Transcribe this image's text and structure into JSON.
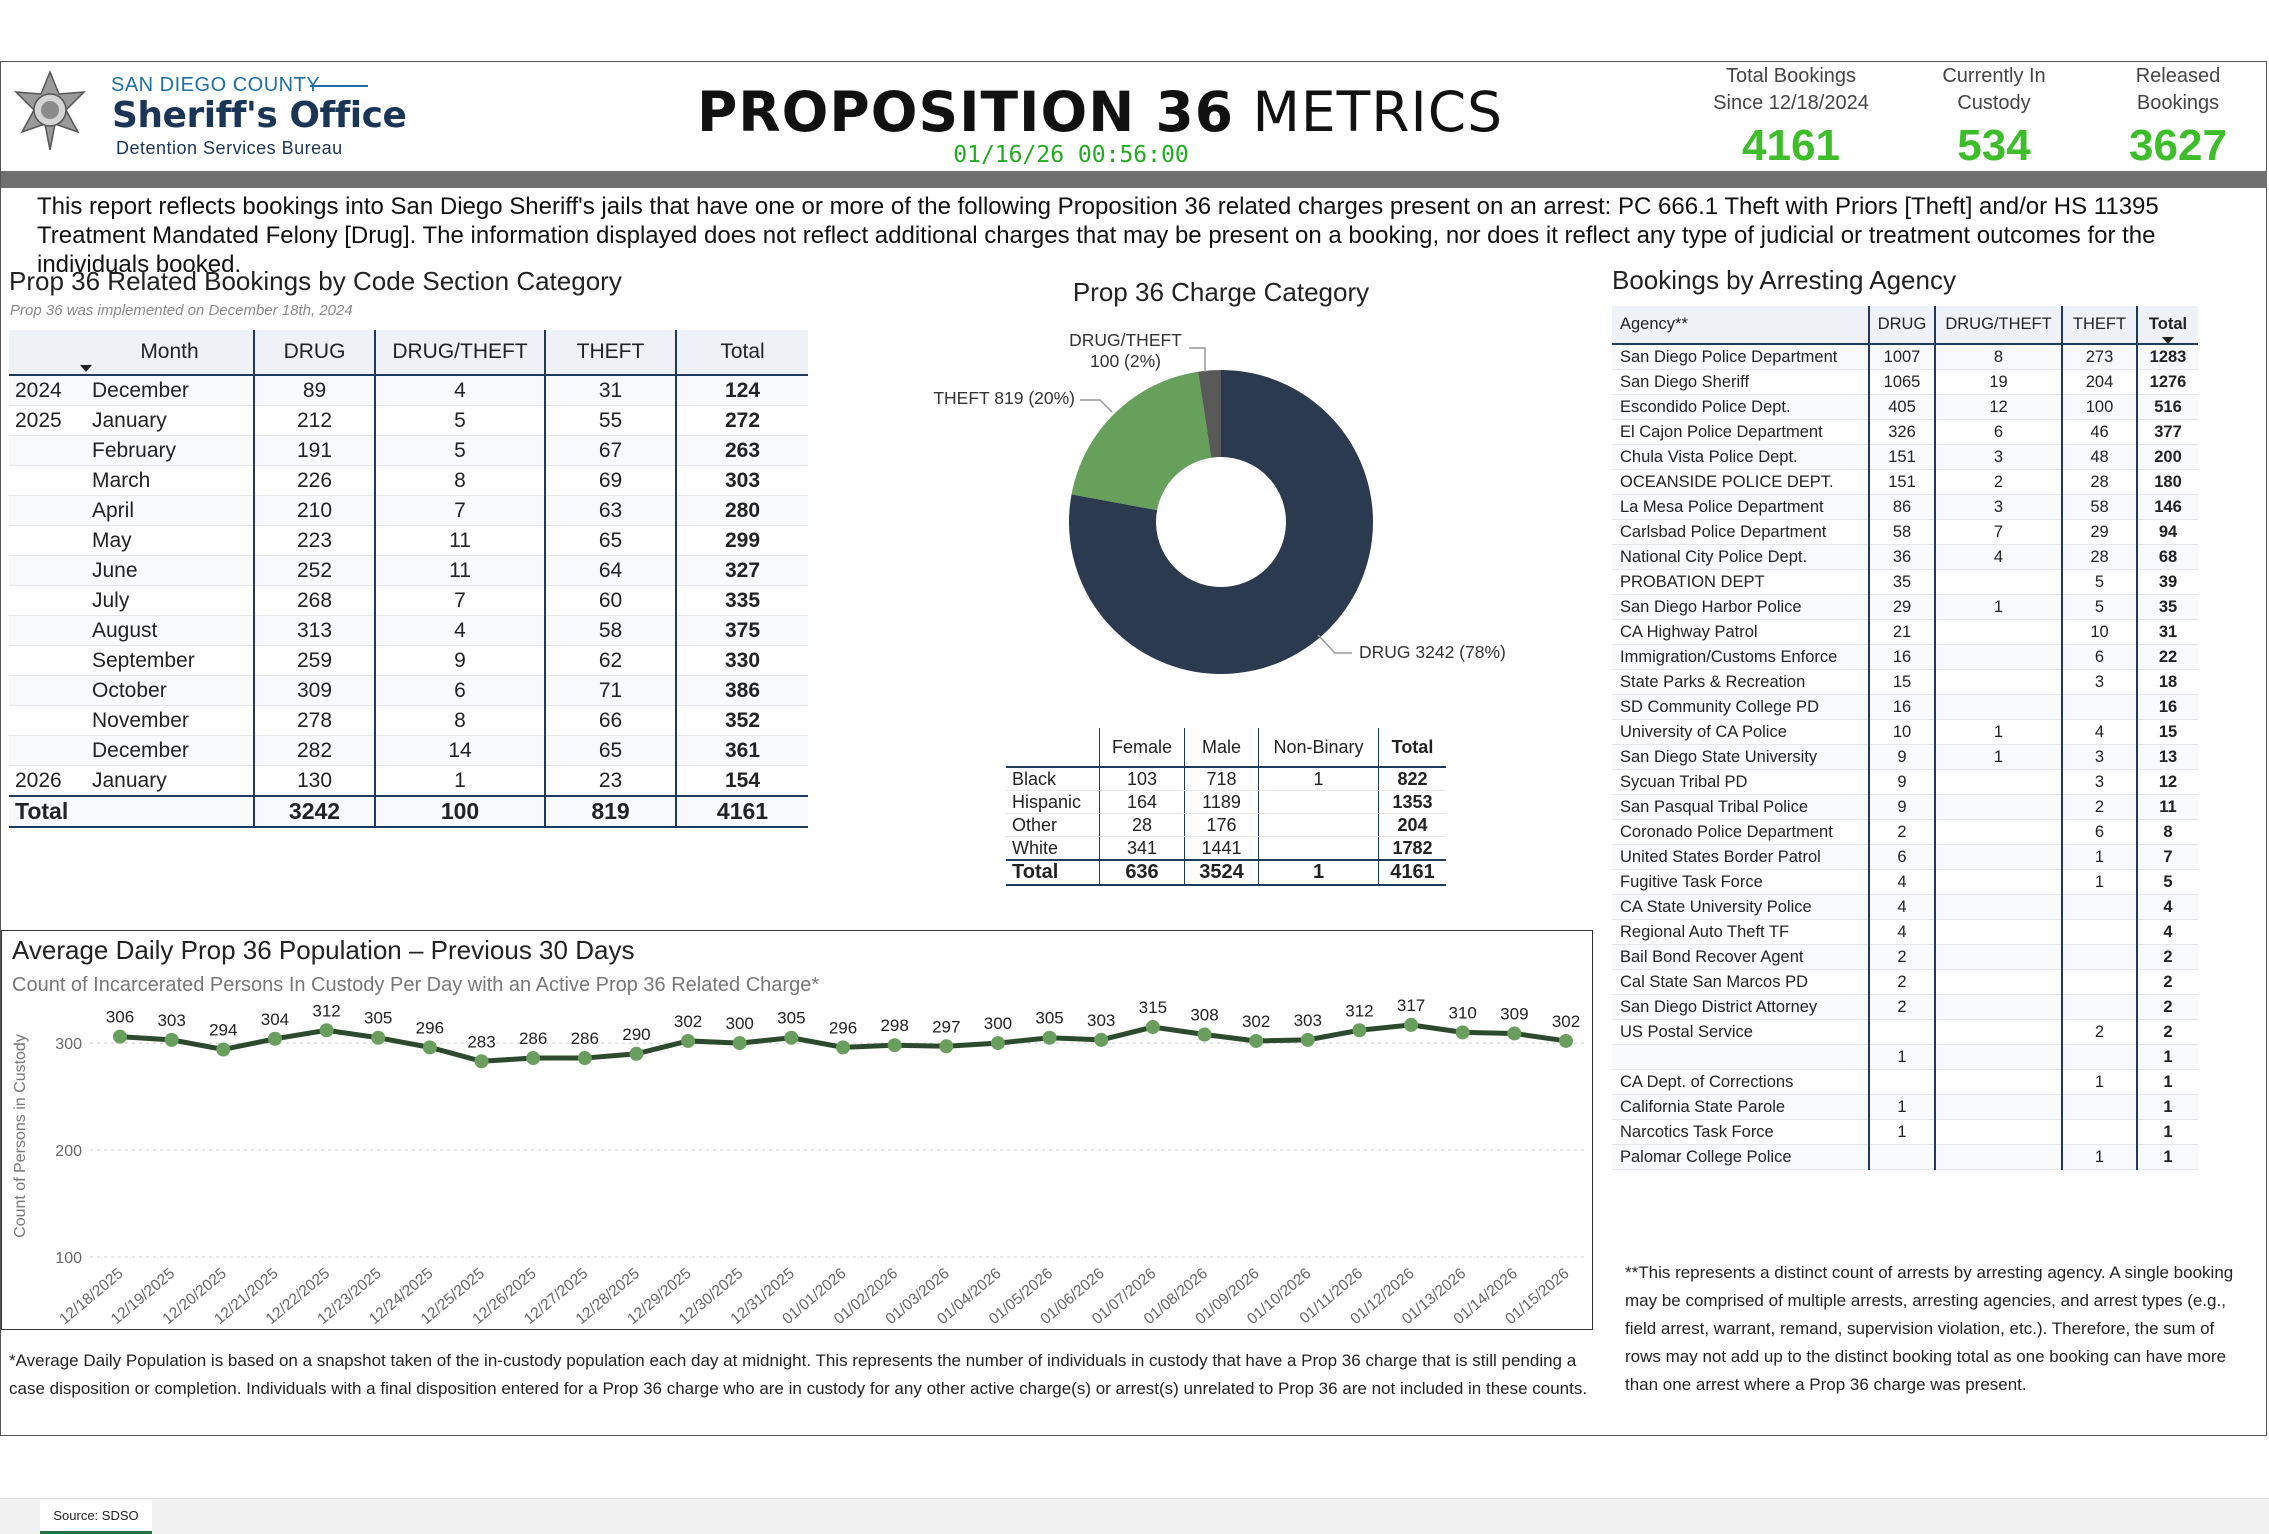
{
  "header": {
    "org_county": "SAN DIEGO COUNTY",
    "org_name": "Sheriff's Office",
    "org_unit": "Detention Services Bureau",
    "title_bold": "PROPOSITION 36",
    "title_light": "METRICS",
    "timestamp": "01/16/26 00:56:00",
    "kpis": [
      {
        "label": "Total Bookings Since 12/18/2024",
        "value": 4161
      },
      {
        "label": "Currently In Custody",
        "value": 534
      },
      {
        "label": "Released Bookings",
        "value": 3627
      }
    ]
  },
  "intro": "This report reflects bookings into San Diego Sheriff's jails that have one or more of the following Proposition 36 related charges present on an arrest: PC 666.1 Theft with Priors [Theft] and/or HS 11395 Treatment Mandated Felony [Drug]. The information displayed does not reflect additional charges that may be present on a booking, nor does it reflect any type of judicial or treatment outcomes for the individuals booked.",
  "monthly_table": {
    "title": "Prop 36 Related Bookings by Code Section Category",
    "subtitle": "Prop 36 was implemented on December 18th, 2024",
    "columns": [
      "Month",
      "DRUG",
      "DRUG/THEFT",
      "THEFT",
      "Total"
    ],
    "rows": [
      {
        "year": "2024",
        "month": "December",
        "values": [
          89,
          4,
          31,
          124
        ]
      },
      {
        "year": "2025",
        "month": "January",
        "values": [
          212,
          5,
          55,
          272
        ]
      },
      {
        "year": null,
        "month": "February",
        "values": [
          191,
          5,
          67,
          263
        ]
      },
      {
        "year": null,
        "month": "March",
        "values": [
          226,
          8,
          69,
          303
        ]
      },
      {
        "year": null,
        "month": "April",
        "values": [
          210,
          7,
          63,
          280
        ]
      },
      {
        "year": null,
        "month": "May",
        "values": [
          223,
          11,
          65,
          299
        ]
      },
      {
        "year": null,
        "month": "June",
        "values": [
          252,
          11,
          64,
          327
        ]
      },
      {
        "year": null,
        "month": "July",
        "values": [
          268,
          7,
          60,
          335
        ]
      },
      {
        "year": null,
        "month": "August",
        "values": [
          313,
          4,
          58,
          375
        ]
      },
      {
        "year": null,
        "month": "September",
        "values": [
          259,
          9,
          62,
          330
        ]
      },
      {
        "year": null,
        "month": "October",
        "values": [
          309,
          6,
          71,
          386
        ]
      },
      {
        "year": null,
        "month": "November",
        "values": [
          278,
          8,
          66,
          352
        ]
      },
      {
        "year": null,
        "month": "December",
        "values": [
          282,
          14,
          65,
          361
        ]
      },
      {
        "year": "2026",
        "month": "January",
        "values": [
          130,
          1,
          23,
          154
        ]
      }
    ],
    "total": {
      "label": "Total",
      "values": [
        3242,
        100,
        819,
        4161
      ]
    }
  },
  "chart_data": [
    {
      "type": "donut",
      "title": "Prop 36 Charge Category",
      "categories": [
        "DRUG",
        "THEFT",
        "DRUG/THEFT"
      ],
      "values": [
        3242,
        819,
        100
      ],
      "value_labels": [
        "DRUG 3242 (78%)",
        "THEFT 819 (20%)",
        "DRUG/THEFT 100 (2%)"
      ],
      "colors": [
        "#2b3a4e",
        "#66a05a",
        "#595959"
      ]
    },
    {
      "type": "line",
      "title": "Average Daily Prop 36 Population – Previous 30 Days",
      "subtitle": "Count of Incarcerated Persons In Custody Per Day with an Active Prop 36 Related Charge*",
      "y_label": "Count of Persons in Custody",
      "categories": [
        "12/18/2025",
        "12/19/2025",
        "12/20/2025",
        "12/21/2025",
        "12/22/2025",
        "12/23/2025",
        "12/24/2025",
        "12/25/2025",
        "12/26/2025",
        "12/27/2025",
        "12/28/2025",
        "12/29/2025",
        "12/30/2025",
        "12/31/2025",
        "01/01/2026",
        "01/02/2026",
        "01/03/2026",
        "01/04/2026",
        "01/05/2026",
        "01/06/2026",
        "01/07/2026",
        "01/08/2026",
        "01/09/2026",
        "01/10/2026",
        "01/11/2026",
        "01/12/2026",
        "01/13/2026",
        "01/14/2026",
        "01/15/2026"
      ],
      "values": [
        306,
        303,
        294,
        304,
        312,
        305,
        296,
        283,
        286,
        286,
        290,
        302,
        300,
        305,
        296,
        298,
        297,
        300,
        305,
        303,
        315,
        308,
        302,
        303,
        312,
        317,
        310,
        309,
        302
      ],
      "color": "#2e4a2e",
      "marker_color": "#6a9e5e",
      "ylim": [
        100,
        330
      ],
      "yticks": [
        100,
        200,
        300
      ],
      "grid": true,
      "footnote": "*Average Daily Population is based on a snapshot taken of the in-custody population each day at midnight. This represents the number of individuals in custody that have a Prop 36 charge that is still pending a case disposition or completion. Individuals with a final disposition entered for a Prop 36 charge who are in custody for any other active charge(s) or arrest(s) unrelated to Prop 36 are not included in these counts."
    }
  ],
  "demographics_table": {
    "columns": [
      "Female",
      "Male",
      "Non-Binary",
      "Total"
    ],
    "rows": [
      {
        "label": "Black",
        "values": [
          103,
          718,
          1,
          822
        ]
      },
      {
        "label": "Hispanic",
        "values": [
          164,
          1189,
          null,
          1353
        ]
      },
      {
        "label": "Other",
        "values": [
          28,
          176,
          null,
          204
        ]
      },
      {
        "label": "White",
        "values": [
          341,
          1441,
          null,
          1782
        ]
      }
    ],
    "total": {
      "label": "Total",
      "values": [
        636,
        3524,
        1,
        4161
      ]
    }
  },
  "agency_table": {
    "title": "Bookings by Arresting Agency",
    "columns": [
      "Agency**",
      "DRUG",
      "DRUG/THEFT",
      "THEFT",
      "Total"
    ],
    "rows": [
      {
        "agency": "San Diego Police Department",
        "values": [
          1007,
          8,
          273,
          1283
        ]
      },
      {
        "agency": "San Diego Sheriff",
        "values": [
          1065,
          19,
          204,
          1276
        ]
      },
      {
        "agency": "Escondido Police Dept.",
        "values": [
          405,
          12,
          100,
          516
        ]
      },
      {
        "agency": "El Cajon Police Department",
        "values": [
          326,
          6,
          46,
          377
        ]
      },
      {
        "agency": "Chula Vista Police Dept.",
        "values": [
          151,
          3,
          48,
          200
        ]
      },
      {
        "agency": "OCEANSIDE POLICE DEPT.",
        "values": [
          151,
          2,
          28,
          180
        ]
      },
      {
        "agency": "La Mesa Police Department",
        "values": [
          86,
          3,
          58,
          146
        ]
      },
      {
        "agency": "Carlsbad Police Department",
        "values": [
          58,
          7,
          29,
          94
        ]
      },
      {
        "agency": "National City Police Dept.",
        "values": [
          36,
          4,
          28,
          68
        ]
      },
      {
        "agency": "PROBATION DEPT",
        "values": [
          35,
          null,
          5,
          39
        ]
      },
      {
        "agency": "San Diego Harbor Police",
        "values": [
          29,
          1,
          5,
          35
        ]
      },
      {
        "agency": "CA Highway Patrol",
        "values": [
          21,
          null,
          10,
          31
        ]
      },
      {
        "agency": "Immigration/Customs Enforce",
        "values": [
          16,
          null,
          6,
          22
        ]
      },
      {
        "agency": "State Parks & Recreation",
        "values": [
          15,
          null,
          3,
          18
        ]
      },
      {
        "agency": "SD Community College PD",
        "values": [
          16,
          null,
          null,
          16
        ]
      },
      {
        "agency": "University of CA Police",
        "values": [
          10,
          1,
          4,
          15
        ]
      },
      {
        "agency": "San Diego State University",
        "values": [
          9,
          1,
          3,
          13
        ]
      },
      {
        "agency": "Sycuan Tribal PD",
        "values": [
          9,
          null,
          3,
          12
        ]
      },
      {
        "agency": "San Pasqual Tribal Police",
        "values": [
          9,
          null,
          2,
          11
        ]
      },
      {
        "agency": "Coronado Police Department",
        "values": [
          2,
          null,
          6,
          8
        ]
      },
      {
        "agency": "United States Border Patrol",
        "values": [
          6,
          null,
          1,
          7
        ]
      },
      {
        "agency": "Fugitive Task Force",
        "values": [
          4,
          null,
          1,
          5
        ]
      },
      {
        "agency": "CA State University Police",
        "values": [
          4,
          null,
          null,
          4
        ]
      },
      {
        "agency": "Regional Auto Theft TF",
        "values": [
          4,
          null,
          null,
          4
        ]
      },
      {
        "agency": "Bail Bond Recover Agent",
        "values": [
          2,
          null,
          null,
          2
        ]
      },
      {
        "agency": "Cal State San Marcos PD",
        "values": [
          2,
          null,
          null,
          2
        ]
      },
      {
        "agency": "San Diego District Attorney",
        "values": [
          2,
          null,
          null,
          2
        ]
      },
      {
        "agency": "US Postal Service",
        "values": [
          null,
          null,
          2,
          2
        ]
      },
      {
        "agency": null,
        "values": [
          1,
          null,
          null,
          1
        ]
      },
      {
        "agency": "CA Dept. of Corrections",
        "values": [
          null,
          null,
          1,
          1
        ]
      },
      {
        "agency": "California State Parole",
        "values": [
          1,
          null,
          null,
          1
        ]
      },
      {
        "agency": "Narcotics Task Force",
        "values": [
          1,
          null,
          null,
          1
        ]
      },
      {
        "agency": "Palomar College Police",
        "values": [
          null,
          null,
          1,
          1
        ]
      }
    ],
    "note": "**This represents a distinct count of arrests by arresting agency. A single booking may be comprised of multiple arrests, arresting agencies, and arrest types (e.g., field arrest, warrant, remand, supervision violation, etc.). Therefore, the sum of rows may not add up to the distinct booking total as one booking can have more than one arrest where a Prop 36 charge was present."
  },
  "footer": {
    "tab": "Source: SDSO"
  }
}
